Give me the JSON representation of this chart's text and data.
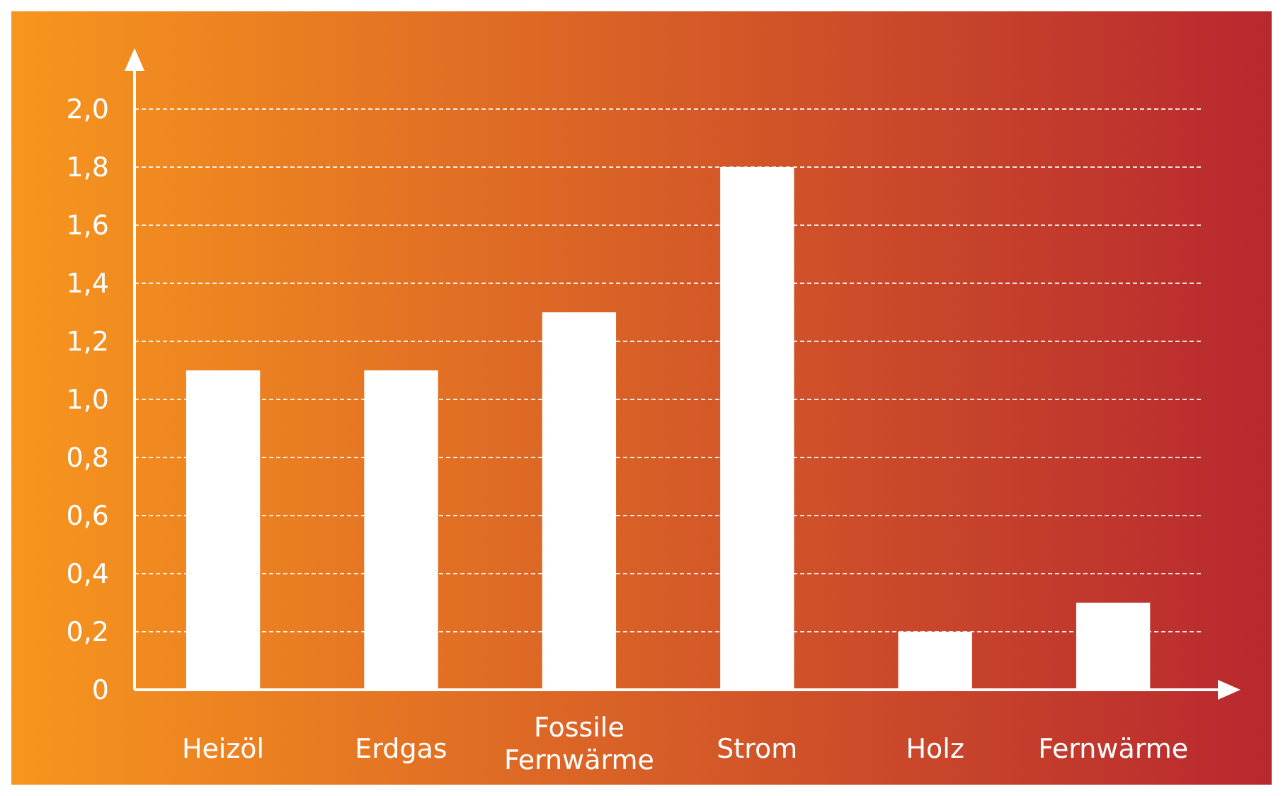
{
  "chart_data": {
    "type": "bar",
    "categories": [
      "Heizöl",
      "Erdgas",
      "Fossile Fernwärme",
      "Strom",
      "Holz",
      "Fernwärme"
    ],
    "values": [
      1.1,
      1.1,
      1.3,
      1.8,
      0.2,
      0.3
    ],
    "color": "#ffffff",
    "ylim": [
      0,
      2.0
    ],
    "yticks": [
      0,
      {
        "value": 0.2,
        "label": "0,2"
      },
      {
        "value": 0.4,
        "label": "0,4"
      },
      {
        "value": 0.6,
        "label": "0,6"
      },
      {
        "value": 0.8,
        "label": "0,8"
      },
      {
        "value": 1.0,
        "label": "1,0"
      },
      {
        "value": 1.2,
        "label": "1,2"
      },
      {
        "value": 1.4,
        "label": "1,4"
      },
      {
        "value": 1.6,
        "label": "1,6"
      },
      {
        "value": 1.8,
        "label": "1,8"
      },
      {
        "value": 2.0,
        "label": "2,0"
      }
    ],
    "grid": "y"
  }
}
